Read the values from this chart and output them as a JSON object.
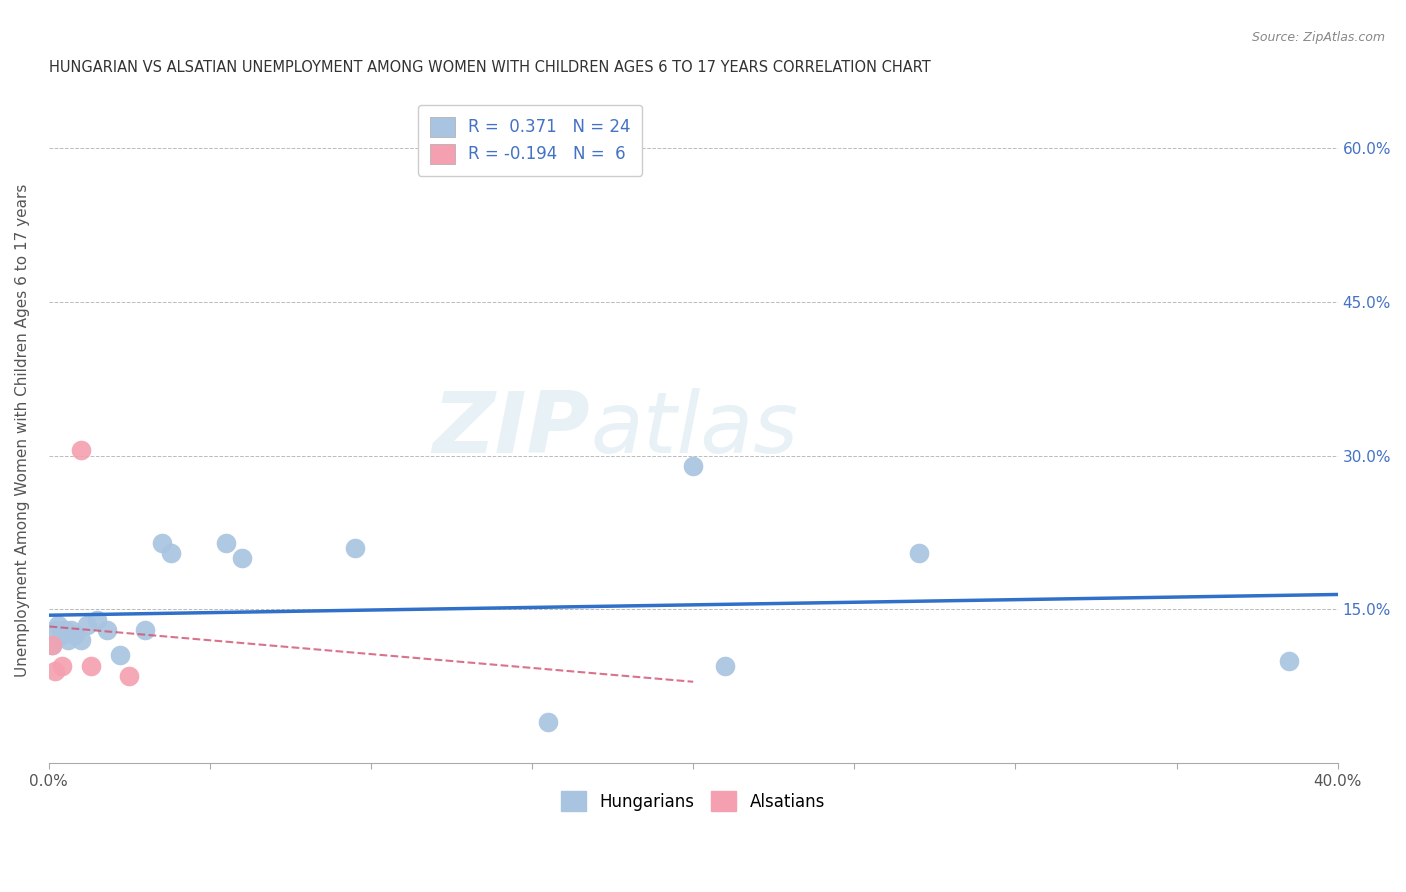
{
  "title": "HUNGARIAN VS ALSATIAN UNEMPLOYMENT AMONG WOMEN WITH CHILDREN AGES 6 TO 17 YEARS CORRELATION CHART",
  "source": "Source: ZipAtlas.com",
  "ylabel": "Unemployment Among Women with Children Ages 6 to 17 years",
  "xlim": [
    0.0,
    0.4
  ],
  "ylim": [
    0.0,
    0.65
  ],
  "xticks": [
    0.0,
    0.05,
    0.1,
    0.15,
    0.2,
    0.25,
    0.3,
    0.35,
    0.4
  ],
  "yticks": [
    0.0,
    0.15,
    0.3,
    0.45,
    0.6
  ],
  "hungarian_x": [
    0.001,
    0.002,
    0.003,
    0.004,
    0.005,
    0.006,
    0.007,
    0.008,
    0.01,
    0.012,
    0.015,
    0.018,
    0.022,
    0.03,
    0.035,
    0.038,
    0.055,
    0.06,
    0.095,
    0.155,
    0.2,
    0.21,
    0.27,
    0.385
  ],
  "hungarian_y": [
    0.115,
    0.13,
    0.135,
    0.125,
    0.13,
    0.12,
    0.13,
    0.125,
    0.12,
    0.135,
    0.14,
    0.13,
    0.105,
    0.13,
    0.215,
    0.205,
    0.215,
    0.2,
    0.21,
    0.04,
    0.29,
    0.095,
    0.205,
    0.1
  ],
  "alsatian_x": [
    0.001,
    0.002,
    0.004,
    0.01,
    0.013,
    0.025
  ],
  "alsatian_y": [
    0.115,
    0.09,
    0.095,
    0.305,
    0.095,
    0.085
  ],
  "hungarian_r": 0.371,
  "hungarian_n": 24,
  "alsatian_r": -0.194,
  "alsatian_n": 6,
  "hungarian_color": "#a8c4e0",
  "alsatian_color": "#f4a0b0",
  "hungarian_line_color": "#3070c8",
  "alsatian_line_color": "#d05070",
  "dot_size": 200,
  "background_color": "#ffffff",
  "grid_color": "#bbbbbb"
}
